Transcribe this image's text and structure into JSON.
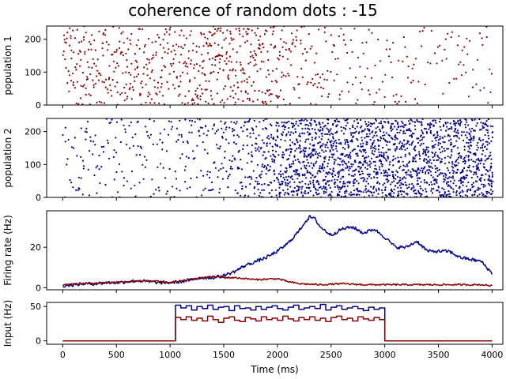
{
  "title": "coherence of random dots : -15",
  "colors": {
    "population_1": "#8b0000",
    "population_2": "#00008b"
  },
  "chart_data": [
    {
      "type": "scatter",
      "name": "raster-population-1",
      "ylabel": "population 1",
      "xlim": [
        -150,
        4100
      ],
      "ylim": [
        0,
        240
      ],
      "yticks": [
        0,
        100,
        200
      ],
      "x_tick_labels_shown": false,
      "marker": "dot",
      "color": "#8b0000",
      "density_profile": {
        "x": [
          0,
          500,
          1000,
          1200,
          1400,
          1500,
          1600,
          1800,
          2000,
          2200,
          2500,
          3000,
          3500,
          4000
        ],
        "relative_density": [
          1.0,
          1.0,
          1.0,
          1.1,
          1.3,
          1.35,
          1.3,
          1.15,
          1.0,
          0.6,
          0.45,
          0.35,
          0.3,
          0.3
        ]
      }
    },
    {
      "type": "scatter",
      "name": "raster-population-2",
      "ylabel": "population 2",
      "xlim": [
        -150,
        4100
      ],
      "ylim": [
        0,
        240
      ],
      "yticks": [
        0,
        100,
        200
      ],
      "x_tick_labels_shown": false,
      "marker": "dot",
      "color": "#00008b",
      "density_profile": {
        "x": [
          0,
          500,
          1000,
          1200,
          1500,
          1800,
          2000,
          2200,
          2500,
          3000,
          3500,
          4000
        ],
        "relative_density": [
          0.5,
          0.5,
          0.55,
          0.7,
          1.0,
          1.6,
          2.6,
          3.6,
          3.6,
          3.5,
          3.4,
          3.4
        ]
      }
    },
    {
      "type": "line",
      "name": "firing-rate",
      "ylabel": "Firing rate (Hz)",
      "xlim": [
        -150,
        4100
      ],
      "ylim": [
        -1,
        38
      ],
      "yticks": [
        0,
        20
      ],
      "x_tick_labels_shown": false,
      "series": [
        {
          "color": "#00008b",
          "x": [
            0,
            100,
            200,
            300,
            400,
            500,
            600,
            700,
            800,
            900,
            1000,
            1100,
            1200,
            1300,
            1400,
            1500,
            1600,
            1700,
            1800,
            1900,
            2000,
            2100,
            2200,
            2250,
            2300,
            2350,
            2400,
            2500,
            2600,
            2700,
            2800,
            2900,
            3000,
            3100,
            3200,
            3300,
            3400,
            3500,
            3600,
            3700,
            3800,
            3900,
            4000
          ],
          "y": [
            1,
            1.5,
            2,
            2,
            2.5,
            2.5,
            3,
            3.5,
            3,
            2.5,
            2.5,
            3,
            4,
            5,
            5,
            6,
            8,
            11,
            13,
            15,
            18,
            22,
            28,
            32,
            35,
            34,
            30,
            26,
            29,
            30,
            27,
            29,
            25,
            20,
            20,
            23,
            18,
            18,
            18,
            15,
            14,
            13,
            7
          ]
        },
        {
          "color": "#8b0000",
          "x": [
            0,
            200,
            400,
            600,
            800,
            1000,
            1200,
            1300,
            1400,
            1500,
            1600,
            1800,
            2000,
            2100,
            2200,
            2400,
            2600,
            2800,
            3000,
            3200,
            3400,
            3600,
            3800,
            3900,
            4000
          ],
          "y": [
            1.5,
            2,
            2.5,
            3,
            3.5,
            2.5,
            4,
            5,
            5.5,
            5,
            5,
            4,
            4.5,
            3,
            2,
            1.5,
            2,
            1.5,
            1.5,
            1.5,
            1.5,
            1.5,
            1.5,
            1.5,
            1
          ]
        }
      ]
    },
    {
      "type": "line",
      "name": "input",
      "ylabel": "Input (Hz)",
      "xlabel": "Time (ms)",
      "xlim": [
        -150,
        4100
      ],
      "ylim": [
        -5,
        56
      ],
      "yticks": [
        0,
        50
      ],
      "xticks": [
        0,
        500,
        1000,
        1500,
        2000,
        2500,
        3000,
        3500,
        4000
      ],
      "step_width_ms": 50,
      "series": [
        {
          "color": "#00008b",
          "x": [
            0,
            1000,
            1050,
            1100,
            1150,
            1200,
            1250,
            1300,
            1350,
            1400,
            1450,
            1500,
            1550,
            1600,
            1650,
            1700,
            1750,
            1800,
            1850,
            1900,
            1950,
            2000,
            2050,
            2100,
            2150,
            2200,
            2250,
            2300,
            2350,
            2400,
            2450,
            2500,
            2550,
            2600,
            2650,
            2700,
            2750,
            2800,
            2850,
            2900,
            2950,
            3000,
            4000
          ],
          "y": [
            0,
            0,
            52,
            48,
            51,
            45,
            50,
            47,
            52,
            46,
            49,
            50,
            44,
            51,
            47,
            48,
            45,
            50,
            46,
            49,
            51,
            47,
            45,
            49,
            52,
            46,
            48,
            50,
            47,
            53,
            45,
            49,
            51,
            46,
            48,
            50,
            47,
            44,
            49,
            46,
            48,
            0,
            0
          ]
        },
        {
          "color": "#8b0000",
          "x": [
            0,
            1000,
            1050,
            1100,
            1150,
            1200,
            1250,
            1300,
            1350,
            1400,
            1450,
            1500,
            1550,
            1600,
            1650,
            1700,
            1750,
            1800,
            1850,
            1900,
            1950,
            2000,
            2050,
            2100,
            2150,
            2200,
            2250,
            2300,
            2350,
            2400,
            2450,
            2500,
            2550,
            2600,
            2650,
            2700,
            2750,
            2800,
            2850,
            2900,
            2950,
            3000,
            4000
          ],
          "y": [
            0,
            0,
            34,
            31,
            35,
            30,
            33,
            29,
            36,
            31,
            27,
            33,
            35,
            30,
            28,
            34,
            32,
            29,
            35,
            31,
            33,
            30,
            36,
            32,
            29,
            34,
            31,
            35,
            30,
            33,
            28,
            34,
            36,
            31,
            33,
            29,
            35,
            32,
            30,
            34,
            31,
            0,
            0
          ]
        }
      ]
    }
  ]
}
